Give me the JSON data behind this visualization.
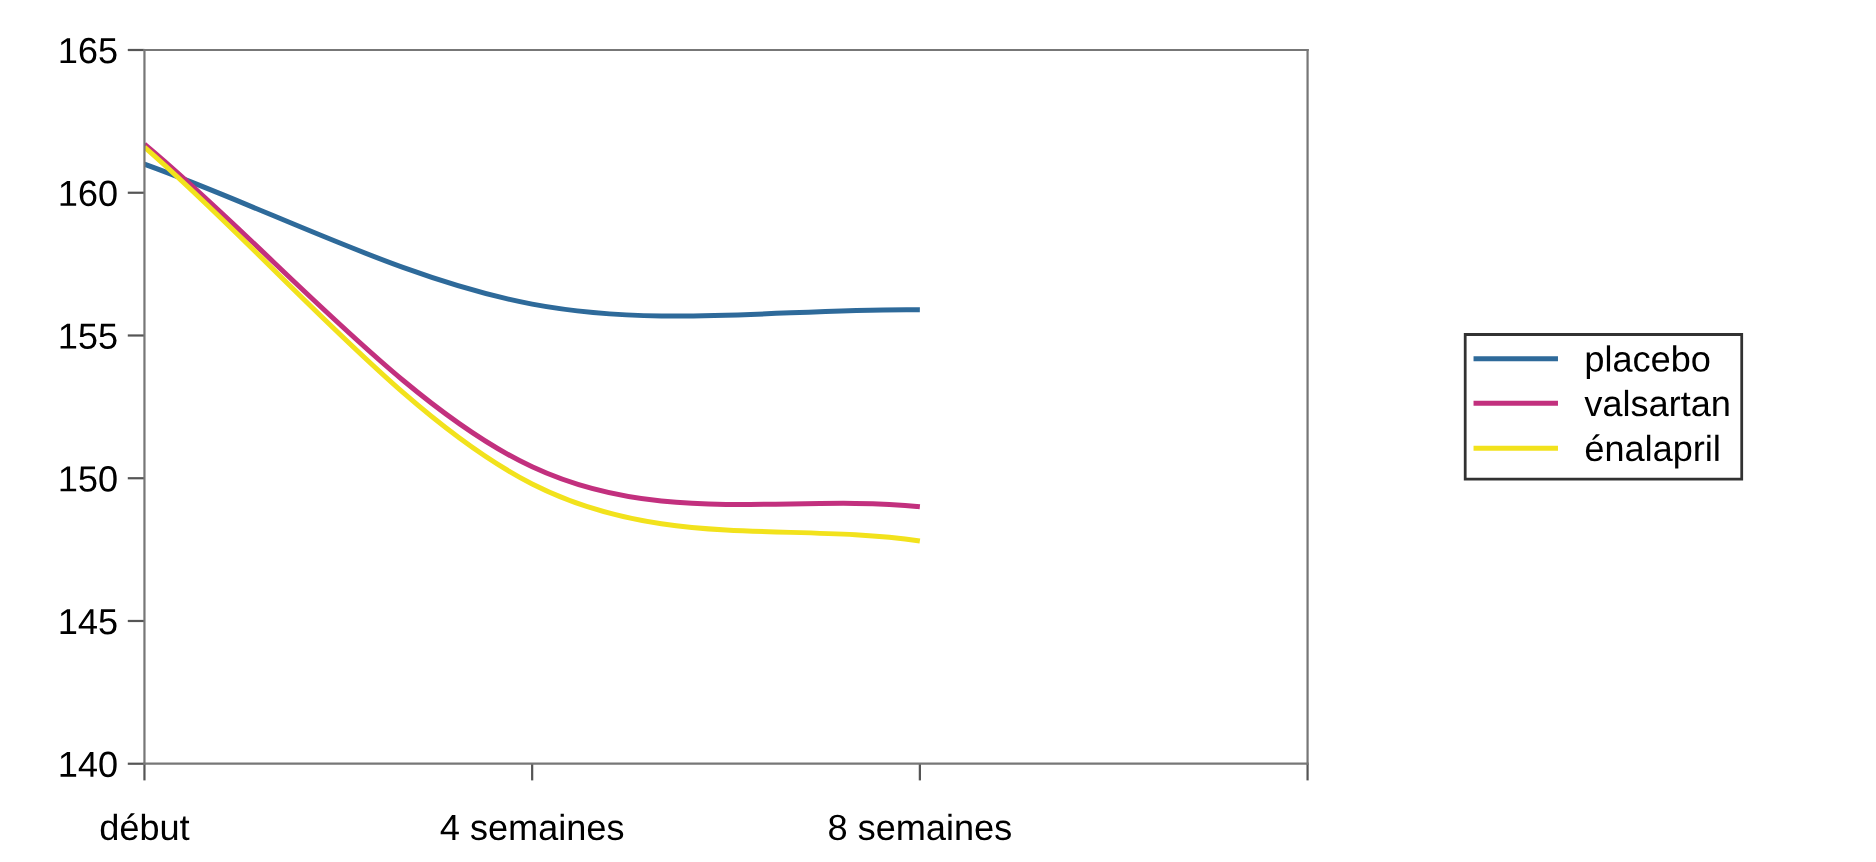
{
  "chart_data": {
    "type": "line",
    "categories": [
      "début",
      "4 semaines",
      "8 semaines",
      null
    ],
    "series": [
      {
        "name": "placebo",
        "color": "#2e6a9a",
        "values": [
          161.0,
          156.1,
          155.9,
          null
        ]
      },
      {
        "name": "valsartan",
        "color": "#c2307e",
        "values": [
          161.7,
          150.4,
          149.0,
          null
        ]
      },
      {
        "name": "énalapril",
        "color": "#f2e21c",
        "values": [
          161.6,
          149.8,
          147.8,
          null
        ]
      }
    ],
    "ylim": [
      140,
      165
    ],
    "yticks": [
      140,
      145,
      150,
      155,
      160,
      165
    ],
    "grid": false,
    "legend": "right",
    "marker": "none",
    "line_style": "solid"
  }
}
